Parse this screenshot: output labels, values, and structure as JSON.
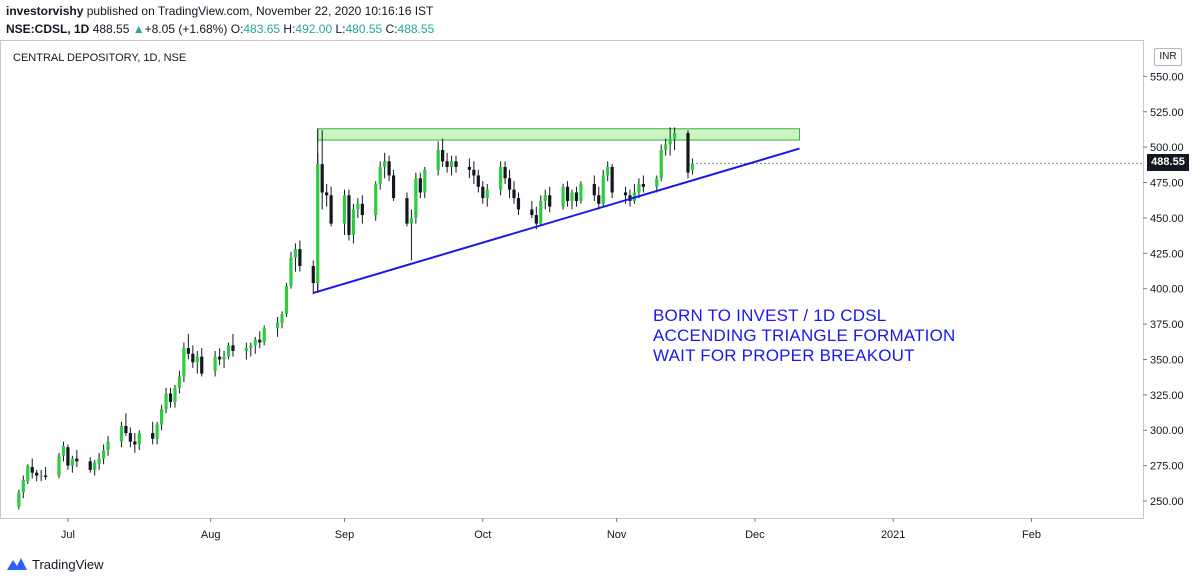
{
  "header": {
    "author": "investorvishy",
    "published": "published on TradingView.com, November 22, 2020 10:16:16 IST",
    "symbol": "NSE:CDSL, 1D",
    "last": "488.55",
    "arrow": "▲",
    "change": "+8.05 (+1.68%)",
    "o_label": "O:",
    "o": "483.65",
    "h_label": "H:",
    "h": "492.00",
    "l_label": "L:",
    "l": "480.55",
    "c_label": "C:",
    "c": "488.55"
  },
  "chart_title": "CENTRAL DEPOSITORY, 1D, NSE",
  "currency_badge": "INR",
  "annotations": [
    "BORN TO INVEST / 1D CDSL",
    "ACCENDING TRIANGLE FORMATION",
    "WAIT FOR PROPER BREAKOUT"
  ],
  "footer": {
    "brand": "TradingView"
  },
  "colors": {
    "up": "#2ecc40",
    "down": "#131722",
    "trendline": "#1a1ae6",
    "resistance_zone": "#c8f5c0",
    "resistance_border": "#3cb043"
  },
  "chart_data": {
    "type": "candlestick",
    "title": "CENTRAL DEPOSITORY, 1D, NSE",
    "x_tick_labels": [
      "Jul",
      "Aug",
      "Sep",
      "Oct",
      "Nov",
      "Dec",
      "2021",
      "Feb"
    ],
    "x_tick_days": [
      11,
      43,
      73,
      104,
      134,
      165,
      196,
      227
    ],
    "y_tick_labels": [
      "250.00",
      "275.00",
      "300.00",
      "325.00",
      "350.00",
      "375.00",
      "400.00",
      "425.00",
      "450.00",
      "475.00",
      "500.00",
      "525.00",
      "550.00"
    ],
    "ylim": [
      238,
      575
    ],
    "xlim": [
      -4,
      252
    ],
    "current_price": "488.55",
    "candles": [
      {
        "d": 0,
        "o": 246,
        "h": 258,
        "l": 244,
        "c": 256
      },
      {
        "d": 1,
        "o": 256,
        "h": 268,
        "l": 252,
        "c": 265
      },
      {
        "d": 2,
        "o": 264,
        "h": 276,
        "l": 262,
        "c": 275
      },
      {
        "d": 3,
        "o": 274,
        "h": 280,
        "l": 266,
        "c": 270
      },
      {
        "d": 4,
        "o": 270,
        "h": 272,
        "l": 264,
        "c": 268
      },
      {
        "d": 5,
        "o": 268,
        "h": 272,
        "l": 264,
        "c": 268
      },
      {
        "d": 6,
        "o": 268,
        "h": 274,
        "l": 265,
        "c": 267
      },
      {
        "d": 9,
        "o": 268,
        "h": 284,
        "l": 266,
        "c": 282
      },
      {
        "d": 10,
        "o": 282,
        "h": 292,
        "l": 278,
        "c": 289
      },
      {
        "d": 11,
        "o": 288,
        "h": 290,
        "l": 272,
        "c": 275
      },
      {
        "d": 12,
        "o": 275,
        "h": 282,
        "l": 270,
        "c": 280
      },
      {
        "d": 13,
        "o": 280,
        "h": 286,
        "l": 274,
        "c": 278
      },
      {
        "d": 16,
        "o": 278,
        "h": 281,
        "l": 270,
        "c": 272
      },
      {
        "d": 17,
        "o": 272,
        "h": 279,
        "l": 268,
        "c": 277
      },
      {
        "d": 18,
        "o": 276,
        "h": 284,
        "l": 272,
        "c": 280
      },
      {
        "d": 19,
        "o": 280,
        "h": 290,
        "l": 276,
        "c": 286
      },
      {
        "d": 20,
        "o": 286,
        "h": 296,
        "l": 282,
        "c": 292
      },
      {
        "d": 23,
        "o": 292,
        "h": 306,
        "l": 288,
        "c": 303
      },
      {
        "d": 24,
        "o": 303,
        "h": 312,
        "l": 296,
        "c": 298
      },
      {
        "d": 25,
        "o": 298,
        "h": 302,
        "l": 288,
        "c": 292
      },
      {
        "d": 26,
        "o": 292,
        "h": 298,
        "l": 284,
        "c": 290
      },
      {
        "d": 27,
        "o": 290,
        "h": 300,
        "l": 286,
        "c": 298
      },
      {
        "d": 30,
        "o": 298,
        "h": 306,
        "l": 290,
        "c": 294
      },
      {
        "d": 31,
        "o": 294,
        "h": 306,
        "l": 290,
        "c": 304
      },
      {
        "d": 32,
        "o": 304,
        "h": 318,
        "l": 300,
        "c": 315
      },
      {
        "d": 33,
        "o": 315,
        "h": 330,
        "l": 312,
        "c": 326
      },
      {
        "d": 34,
        "o": 326,
        "h": 330,
        "l": 316,
        "c": 320
      },
      {
        "d": 35,
        "o": 320,
        "h": 332,
        "l": 316,
        "c": 330
      },
      {
        "d": 36,
        "o": 330,
        "h": 342,
        "l": 326,
        "c": 338
      },
      {
        "d": 37,
        "o": 338,
        "h": 362,
        "l": 334,
        "c": 358
      },
      {
        "d": 38,
        "o": 358,
        "h": 368,
        "l": 350,
        "c": 354
      },
      {
        "d": 39,
        "o": 354,
        "h": 360,
        "l": 344,
        "c": 348
      },
      {
        "d": 40,
        "o": 348,
        "h": 356,
        "l": 340,
        "c": 352
      },
      {
        "d": 41,
        "o": 352,
        "h": 358,
        "l": 338,
        "c": 340
      },
      {
        "d": 44,
        "o": 342,
        "h": 356,
        "l": 338,
        "c": 352
      },
      {
        "d": 45,
        "o": 352,
        "h": 358,
        "l": 346,
        "c": 350
      },
      {
        "d": 46,
        "o": 350,
        "h": 356,
        "l": 344,
        "c": 352
      },
      {
        "d": 47,
        "o": 352,
        "h": 362,
        "l": 350,
        "c": 360
      },
      {
        "d": 48,
        "o": 360,
        "h": 368,
        "l": 352,
        "c": 356
      },
      {
        "d": 51,
        "o": 356,
        "h": 362,
        "l": 350,
        "c": 358
      },
      {
        "d": 52,
        "o": 358,
        "h": 362,
        "l": 352,
        "c": 360
      },
      {
        "d": 53,
        "o": 360,
        "h": 366,
        "l": 354,
        "c": 364
      },
      {
        "d": 54,
        "o": 364,
        "h": 370,
        "l": 358,
        "c": 362
      },
      {
        "d": 55,
        "o": 362,
        "h": 374,
        "l": 360,
        "c": 372
      },
      {
        "d": 58,
        "o": 372,
        "h": 380,
        "l": 366,
        "c": 376
      },
      {
        "d": 59,
        "o": 376,
        "h": 384,
        "l": 372,
        "c": 382
      },
      {
        "d": 60,
        "o": 382,
        "h": 404,
        "l": 380,
        "c": 402
      },
      {
        "d": 61,
        "o": 402,
        "h": 426,
        "l": 400,
        "c": 422
      },
      {
        "d": 62,
        "o": 422,
        "h": 432,
        "l": 412,
        "c": 428
      },
      {
        "d": 63,
        "o": 428,
        "h": 434,
        "l": 412,
        "c": 416
      },
      {
        "d": 66,
        "o": 416,
        "h": 420,
        "l": 396,
        "c": 404
      },
      {
        "d": 67,
        "o": 404,
        "h": 496,
        "l": 398,
        "c": 488
      },
      {
        "d": 68,
        "o": 488,
        "h": 512,
        "l": 456,
        "c": 468
      },
      {
        "d": 69,
        "o": 468,
        "h": 474,
        "l": 458,
        "c": 466
      },
      {
        "d": 70,
        "o": 466,
        "h": 472,
        "l": 444,
        "c": 446
      },
      {
        "d": 73,
        "o": 446,
        "h": 470,
        "l": 438,
        "c": 466
      },
      {
        "d": 74,
        "o": 466,
        "h": 470,
        "l": 434,
        "c": 438
      },
      {
        "d": 75,
        "o": 438,
        "h": 460,
        "l": 432,
        "c": 456
      },
      {
        "d": 76,
        "o": 456,
        "h": 464,
        "l": 450,
        "c": 460
      },
      {
        "d": 77,
        "o": 460,
        "h": 466,
        "l": 446,
        "c": 452
      },
      {
        "d": 80,
        "o": 452,
        "h": 476,
        "l": 448,
        "c": 474
      },
      {
        "d": 81,
        "o": 474,
        "h": 490,
        "l": 470,
        "c": 486
      },
      {
        "d": 82,
        "o": 486,
        "h": 496,
        "l": 478,
        "c": 490
      },
      {
        "d": 83,
        "o": 490,
        "h": 494,
        "l": 476,
        "c": 480
      },
      {
        "d": 84,
        "o": 480,
        "h": 484,
        "l": 462,
        "c": 464
      },
      {
        "d": 87,
        "o": 464,
        "h": 468,
        "l": 444,
        "c": 446
      },
      {
        "d": 88,
        "o": 446,
        "h": 456,
        "l": 420,
        "c": 450
      },
      {
        "d": 89,
        "o": 450,
        "h": 482,
        "l": 446,
        "c": 478
      },
      {
        "d": 90,
        "o": 478,
        "h": 482,
        "l": 464,
        "c": 468
      },
      {
        "d": 91,
        "o": 468,
        "h": 486,
        "l": 464,
        "c": 484
      },
      {
        "d": 94,
        "o": 484,
        "h": 504,
        "l": 480,
        "c": 498
      },
      {
        "d": 95,
        "o": 498,
        "h": 506,
        "l": 486,
        "c": 490
      },
      {
        "d": 96,
        "o": 490,
        "h": 496,
        "l": 482,
        "c": 486
      },
      {
        "d": 97,
        "o": 486,
        "h": 494,
        "l": 480,
        "c": 490
      },
      {
        "d": 98,
        "o": 490,
        "h": 494,
        "l": 482,
        "c": 486
      },
      {
        "d": 101,
        "o": 486,
        "h": 492,
        "l": 478,
        "c": 484
      },
      {
        "d": 102,
        "o": 484,
        "h": 490,
        "l": 474,
        "c": 480
      },
      {
        "d": 103,
        "o": 480,
        "h": 484,
        "l": 468,
        "c": 472
      },
      {
        "d": 104,
        "o": 472,
        "h": 476,
        "l": 460,
        "c": 464
      },
      {
        "d": 105,
        "o": 464,
        "h": 474,
        "l": 458,
        "c": 470
      },
      {
        "d": 108,
        "o": 470,
        "h": 490,
        "l": 466,
        "c": 486
      },
      {
        "d": 109,
        "o": 486,
        "h": 490,
        "l": 474,
        "c": 478
      },
      {
        "d": 110,
        "o": 478,
        "h": 484,
        "l": 464,
        "c": 470
      },
      {
        "d": 111,
        "o": 470,
        "h": 476,
        "l": 460,
        "c": 464
      },
      {
        "d": 112,
        "o": 464,
        "h": 468,
        "l": 452,
        "c": 456
      },
      {
        "d": 115,
        "o": 456,
        "h": 462,
        "l": 450,
        "c": 452
      },
      {
        "d": 116,
        "o": 452,
        "h": 458,
        "l": 442,
        "c": 446
      },
      {
        "d": 117,
        "o": 446,
        "h": 466,
        "l": 444,
        "c": 462
      },
      {
        "d": 118,
        "o": 462,
        "h": 470,
        "l": 456,
        "c": 466
      },
      {
        "d": 119,
        "o": 466,
        "h": 472,
        "l": 454,
        "c": 458
      },
      {
        "d": 122,
        "o": 458,
        "h": 474,
        "l": 456,
        "c": 472
      },
      {
        "d": 123,
        "o": 472,
        "h": 476,
        "l": 458,
        "c": 462
      },
      {
        "d": 124,
        "o": 462,
        "h": 470,
        "l": 456,
        "c": 468
      },
      {
        "d": 125,
        "o": 468,
        "h": 472,
        "l": 458,
        "c": 462
      },
      {
        "d": 126,
        "o": 462,
        "h": 476,
        "l": 460,
        "c": 474
      },
      {
        "d": 129,
        "o": 474,
        "h": 480,
        "l": 462,
        "c": 466
      },
      {
        "d": 130,
        "o": 466,
        "h": 472,
        "l": 456,
        "c": 460
      },
      {
        "d": 131,
        "o": 460,
        "h": 484,
        "l": 458,
        "c": 480
      },
      {
        "d": 132,
        "o": 480,
        "h": 490,
        "l": 476,
        "c": 486
      },
      {
        "d": 133,
        "o": 486,
        "h": 488,
        "l": 464,
        "c": 468
      },
      {
        "d": 136,
        "o": 468,
        "h": 472,
        "l": 460,
        "c": 466
      },
      {
        "d": 137,
        "o": 466,
        "h": 470,
        "l": 458,
        "c": 462
      },
      {
        "d": 138,
        "o": 462,
        "h": 474,
        "l": 460,
        "c": 468
      },
      {
        "d": 139,
        "o": 468,
        "h": 478,
        "l": 464,
        "c": 474
      },
      {
        "d": 140,
        "o": 474,
        "h": 480,
        "l": 468,
        "c": 472
      },
      {
        "d": 143,
        "o": 472,
        "h": 480,
        "l": 468,
        "c": 478
      },
      {
        "d": 144,
        "o": 478,
        "h": 502,
        "l": 476,
        "c": 498
      },
      {
        "d": 145,
        "o": 498,
        "h": 506,
        "l": 494,
        "c": 502
      },
      {
        "d": 146,
        "o": 502,
        "h": 514,
        "l": 494,
        "c": 506
      },
      {
        "d": 147,
        "o": 506,
        "h": 514,
        "l": 498,
        "c": 510
      },
      {
        "d": 150,
        "o": 510,
        "h": 512,
        "l": 478,
        "c": 482
      },
      {
        "d": 151,
        "o": 483.65,
        "h": 492,
        "l": 480.55,
        "c": 488.55
      }
    ],
    "trendline": {
      "from": {
        "d": 66,
        "v": 397
      },
      "to": {
        "d": 175,
        "v": 499
      }
    },
    "resistance_zone": {
      "from_d": 67,
      "to_d": 175,
      "low": 505,
      "high": 513
    },
    "resistance_left_line": {
      "d": 67,
      "from_v": 397,
      "to_v": 513
    }
  }
}
